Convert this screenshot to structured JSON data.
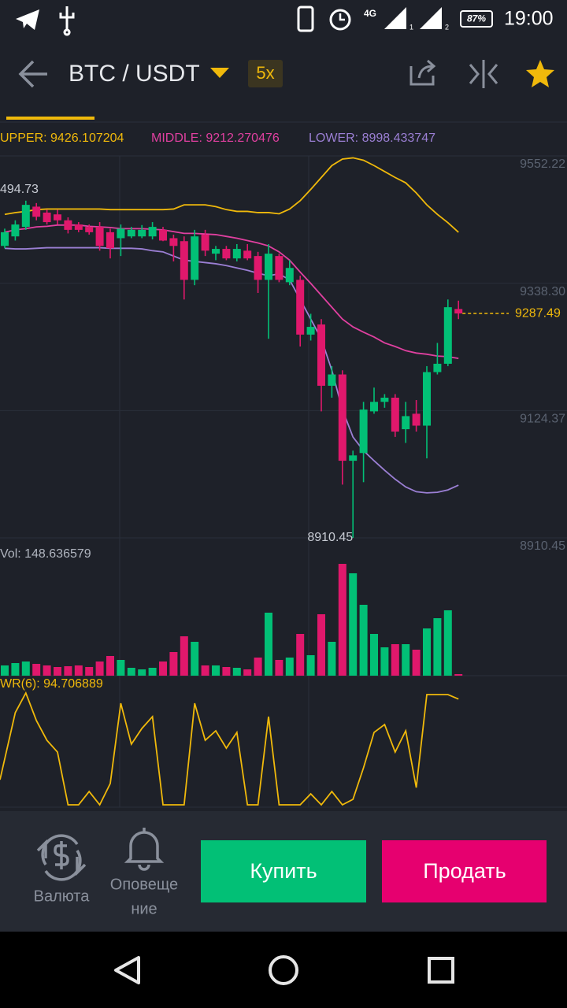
{
  "status_bar": {
    "network": "4G",
    "sim1": "1",
    "sim2": "2",
    "battery": "87%",
    "time": "19:00"
  },
  "header": {
    "pair": "BTC / USDT",
    "leverage": "5x"
  },
  "chart": {
    "bollinger": {
      "upper": "UPPER: 9426.107204",
      "middle": "MIDDLE: 9212.270476",
      "lower": "LOWER: 8998.433747"
    },
    "price_ticks": [
      9552.22,
      {
        "value": 9338.3,
        "label": "9338.30"
      },
      9124.37,
      8910.45
    ],
    "last_price": 9287.49,
    "high_label": "494.73",
    "low_label": 8910.45,
    "open": [
      9401,
      9417,
      9433,
      9467,
      9457,
      9454,
      9444,
      9437,
      9433,
      9433,
      9424,
      9414,
      9417,
      9417,
      9417,
      9428,
      9414,
      9409,
      9344,
      9420,
      9388,
      9396,
      9380,
      9393,
      9384,
      9344,
      9384,
      9340,
      9344,
      9252,
      9269,
      9166,
      9185,
      9040,
      9053,
      9123,
      9139,
      9146,
      9093,
      9119,
      9099,
      9189,
      9203,
      9295
    ],
    "high": [
      9430,
      9444,
      9477,
      9473,
      9462,
      9462,
      9449,
      9441,
      9437,
      9441,
      9430,
      9437,
      9433,
      9436,
      9441,
      9433,
      9420,
      9417,
      9428,
      9428,
      9401,
      9401,
      9404,
      9404,
      9391,
      9404,
      9388,
      9377,
      9351,
      9287,
      9278,
      9199,
      9192,
      9057,
      9139,
      9163,
      9152,
      9152,
      9139,
      9142,
      9199,
      9238,
      9311,
      9309
    ],
    "low": [
      9397,
      9410,
      9428,
      9444,
      9437,
      9437,
      9422,
      9424,
      9420,
      9393,
      9380,
      9384,
      9414,
      9414,
      9412,
      9409,
      9375,
      9311,
      9335,
      9384,
      9377,
      9377,
      9375,
      9377,
      9322,
      9245,
      9340,
      9335,
      9232,
      9242,
      9123,
      9146,
      9000,
      8910.45,
      9004,
      9119,
      9129,
      9080,
      9070,
      9089,
      9044,
      9185,
      9199,
      9278
    ],
    "close": [
      9424,
      9437,
      9470,
      9450,
      9441,
      9444,
      9428,
      9428,
      9424,
      9401,
      9397,
      9430,
      9428,
      9428,
      9433,
      9410,
      9401,
      9344,
      9417,
      9393,
      9396,
      9380,
      9396,
      9380,
      9344,
      9388,
      9344,
      9364,
      9252,
      9265,
      9166,
      9185,
      9040,
      9049,
      9126,
      9139,
      9146,
      9089,
      9115,
      9099,
      9189,
      9203,
      9298,
      9287.49
    ],
    "upper": [
      9454,
      9457,
      9459,
      9462,
      9463,
      9463,
      9463,
      9463,
      9463,
      9463,
      9462,
      9462,
      9462,
      9462,
      9462,
      9462,
      9463,
      9470,
      9470,
      9470,
      9467,
      9462,
      9459,
      9459,
      9457,
      9457,
      9455,
      9463,
      9477,
      9496,
      9516,
      9536,
      9547,
      9549,
      9545,
      9536,
      9526,
      9516,
      9507,
      9490,
      9470,
      9454,
      9440,
      9424
    ],
    "middle": [
      9424,
      9428,
      9430,
      9433,
      9434,
      9436,
      9436,
      9436,
      9434,
      9433,
      9432,
      9430,
      9430,
      9430,
      9429,
      9428,
      9425,
      9422,
      9422,
      9421,
      9420,
      9417,
      9414,
      9410,
      9406,
      9401,
      9391,
      9377,
      9357,
      9338,
      9318,
      9298,
      9278,
      9265,
      9256,
      9248,
      9238,
      9232,
      9225,
      9221,
      9219,
      9216,
      9215,
      9212
    ],
    "lower": [
      9397,
      9396,
      9396,
      9397,
      9398,
      9398,
      9398,
      9398,
      9398,
      9398,
      9397,
      9397,
      9397,
      9396,
      9393,
      9391,
      9384,
      9377,
      9375,
      9373,
      9371,
      9368,
      9364,
      9360,
      9355,
      9351,
      9354,
      9344,
      9311,
      9278,
      9245,
      9192,
      9126,
      9080,
      9057,
      9040,
      9024,
      9009,
      8996,
      8988,
      8986,
      8987,
      8991,
      8999
    ]
  },
  "volume": {
    "label": "Vol: 148.636579",
    "values": [
      962,
      1184,
      1332,
      1110,
      962,
      814,
      888,
      962,
      814,
      1332,
      1850,
      1480,
      740,
      592,
      740,
      1332,
      2220,
      3700,
      3182,
      962,
      962,
      814,
      740,
      592,
      1702,
      5920,
      1480,
      1702,
      3922,
      1924,
      5772,
      3182,
      10508,
      9620,
      6660,
      3922,
      2664,
      2960,
      2960,
      2442,
      4440,
      5402,
      6142,
      148.636579
    ]
  },
  "wr": {
    "label": "WR(6): 94.706889",
    "values": [
      24.1,
      82.8,
      100,
      75.9,
      58.6,
      48.3,
      2.1,
      2.1,
      13.8,
      2.1,
      20.7,
      91,
      55.2,
      69,
      79.3,
      2.1,
      2.1,
      2.1,
      91,
      58.6,
      66.9,
      51.7,
      65.5,
      2.1,
      2.1,
      79.3,
      2.1,
      2.1,
      2.1,
      11.7,
      2.1,
      13.8,
      2.1,
      6.9,
      34.5,
      65.5,
      72.4,
      48.3,
      66.9,
      17.2,
      98.6,
      98.6,
      98.6,
      94.706889
    ]
  },
  "bottom_bar": {
    "currency": "Валюта",
    "alerts": [
      "Оповеще",
      "ние"
    ],
    "buy": "Купить",
    "sell": "Продать"
  }
}
